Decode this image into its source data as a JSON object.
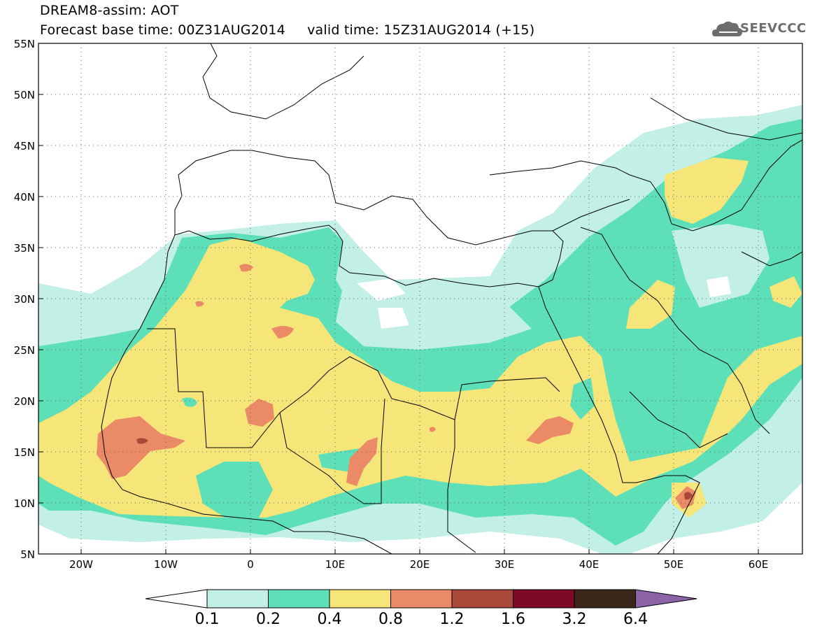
{
  "header": {
    "title_line1": "DREAM8-assim: AOT",
    "title_line2": "Forecast base time: 00Z31AUG2014     valid time: 15Z31AUG2014 (+15)"
  },
  "logo": {
    "text": "SEEVCCC",
    "icon": "cloud-icon"
  },
  "map": {
    "lat_labels": [
      "55N",
      "50N",
      "45N",
      "40N",
      "35N",
      "30N",
      "25N",
      "20N",
      "15N",
      "10N",
      "5N"
    ],
    "lon_labels": [
      "20W",
      "10W",
      "0",
      "10E",
      "20E",
      "30E",
      "40E",
      "50E",
      "60E"
    ],
    "extent": {
      "lon": [
        -25,
        65
      ],
      "lat": [
        5,
        55
      ]
    },
    "grid": "dotted"
  },
  "colorbar": {
    "levels": [
      "0.1",
      "0.2",
      "0.4",
      "0.8",
      "1.2",
      "1.6",
      "3.2",
      "6.4"
    ],
    "colors": [
      "#ffffff",
      "#c2efe6",
      "#5ddfb8",
      "#f6e679",
      "#eb8a66",
      "#a9473b",
      "#7c0b26",
      "#3b2718",
      "#8b63a6"
    ]
  },
  "palette": {
    "very_light": "#c2efe6",
    "green": "#5ddfb8",
    "yellow": "#f6e679",
    "orange": "#eb8a66",
    "brown": "#a9473b"
  }
}
